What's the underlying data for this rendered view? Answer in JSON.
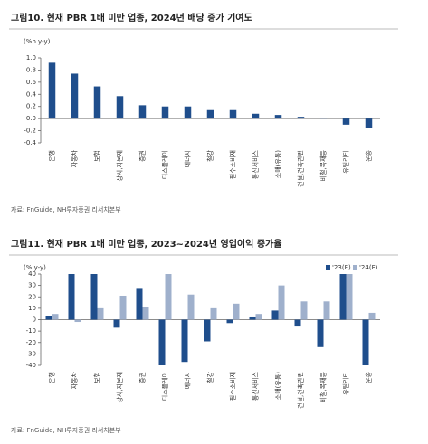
{
  "chart_data": [
    {
      "type": "bar",
      "title": "그림10. 현재 PBR 1배 미만 업종, 2024년 배당 증가 기여도",
      "y_label": "(%p y-y)",
      "source": "자료: FnGuide, NH투자증권 리서치본부",
      "categories": [
        "은행",
        "자동차",
        "보험",
        "상사,자본재",
        "증권",
        "디스플레이",
        "에너지",
        "철강",
        "필수소비재",
        "통신서비스",
        "소매(유통)",
        "건설,건축관련",
        "비철,목재등",
        "유틸리티",
        "운송"
      ],
      "values": [
        0.92,
        0.74,
        0.53,
        0.37,
        0.22,
        0.2,
        0.2,
        0.14,
        0.14,
        0.08,
        0.06,
        0.03,
        0.01,
        -0.1,
        -0.16
      ],
      "color": "#1f4e8c",
      "ylim": [
        -0.4,
        1.0
      ],
      "yticks": [
        -0.4,
        -0.2,
        {
          "value": 0,
          "label": "0.0"
        },
        0.2,
        0.4,
        0.6,
        0.8,
        {
          "value": 1,
          "label": "1.0"
        }
      ]
    },
    {
      "type": "bar",
      "title": "그림11. 현재 PBR 1배 미만 업종, 2023~2024년 영업이익 증가율",
      "y_label": "(% y-y)",
      "source": "자료: FnGuide, NH투자증권 리서치본부",
      "categories": [
        "은행",
        "자동차",
        "보험",
        "상사,자본재",
        "증권",
        "디스플레이",
        "에너지",
        "철강",
        "필수소비재",
        "통신서비스",
        "소매(유통)",
        "건설,건축관련",
        "비철,목재등",
        "유틸리티",
        "운송"
      ],
      "series": [
        {
          "name": "'23(E)",
          "color": "#1f4e8c",
          "values": [
            3,
            40,
            40,
            -7,
            27,
            -40,
            -37,
            -19,
            -3,
            2,
            8,
            -6,
            -24,
            40,
            -40
          ]
        },
        {
          "name": "'24(F)",
          "color": "#9fb0cc",
          "values": [
            5,
            -2,
            10,
            21,
            11,
            40,
            22,
            10,
            14,
            5,
            30,
            16,
            16,
            40,
            6
          ]
        }
      ],
      "legend": "top-right",
      "ylim": [
        -40,
        40
      ],
      "yticks": [
        -40,
        -30,
        -20,
        -10,
        0,
        10,
        20,
        30,
        40
      ]
    }
  ]
}
